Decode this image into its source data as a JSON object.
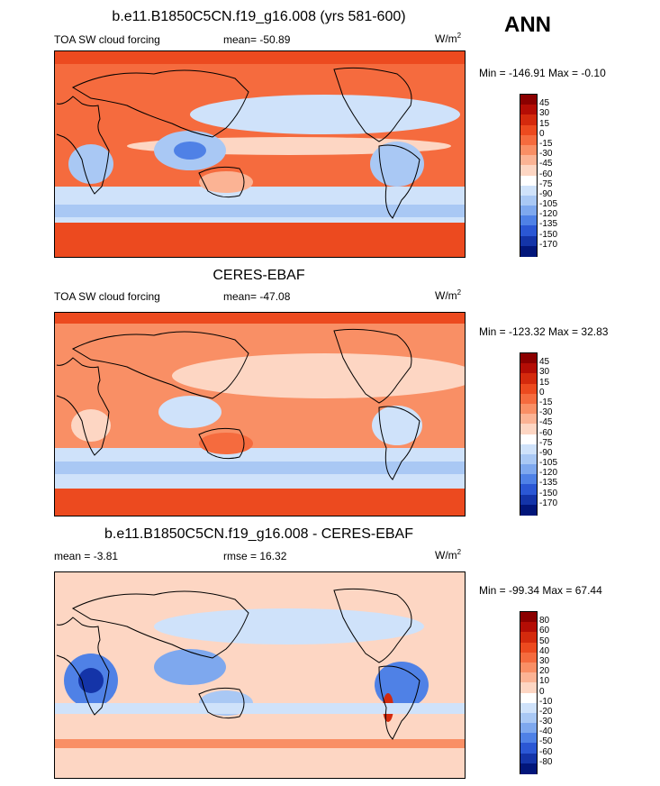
{
  "season": "ANN",
  "units_base": "W/m",
  "units_exp": "2",
  "coast_color": "#000000",
  "chart_data": [
    {
      "type": "heatmap",
      "title": "b.e11.B1850C5CN.f19_g16.008 (yrs 581-600)",
      "left_label": "TOA SW cloud forcing",
      "center_label": "mean= -50.89",
      "minmax_label": "Min = -146.91 Max =  -0.10",
      "colorbar": {
        "levels": [
          "45",
          "30",
          "15",
          "0",
          "-15",
          "-30",
          "-45",
          "-60",
          "-75",
          "-90",
          "-105",
          "-120",
          "-135",
          "-150",
          "-170"
        ],
        "colors": [
          "#8b0000",
          "#b40d05",
          "#d42a0d",
          "#ec4a1f",
          "#f56b3e",
          "#f98f65",
          "#fbb394",
          "#fdd6c3",
          "#ffffff",
          "#cfe2fa",
          "#a9c8f4",
          "#7ea8ee",
          "#4f81e6",
          "#2b57d4",
          "#1434a8",
          "#02167a"
        ]
      }
    },
    {
      "type": "heatmap",
      "title": "CERES-EBAF",
      "left_label": "TOA SW cloud forcing",
      "center_label": "mean= -47.08",
      "minmax_label": "Min = -123.32 Max =  32.83",
      "colorbar": {
        "levels": [
          "45",
          "30",
          "15",
          "0",
          "-15",
          "-30",
          "-45",
          "-60",
          "-75",
          "-90",
          "-105",
          "-120",
          "-135",
          "-150",
          "-170"
        ],
        "colors": [
          "#8b0000",
          "#b40d05",
          "#d42a0d",
          "#ec4a1f",
          "#f56b3e",
          "#f98f65",
          "#fbb394",
          "#fdd6c3",
          "#ffffff",
          "#cfe2fa",
          "#a9c8f4",
          "#7ea8ee",
          "#4f81e6",
          "#2b57d4",
          "#1434a8",
          "#02167a"
        ]
      }
    },
    {
      "type": "heatmap",
      "title": "b.e11.B1850C5CN.f19_g16.008 - CERES-EBAF",
      "left_label": "mean =  -3.81",
      "center_label": "rmse =  16.32",
      "minmax_label": "Min = -99.34 Max =  67.44",
      "colorbar": {
        "levels": [
          "80",
          "60",
          "50",
          "40",
          "30",
          "20",
          "10",
          "0",
          "-10",
          "-20",
          "-30",
          "-40",
          "-50",
          "-60",
          "-80"
        ],
        "colors": [
          "#8b0000",
          "#b40d05",
          "#d42a0d",
          "#ec4a1f",
          "#f56b3e",
          "#f98f65",
          "#fbb394",
          "#fdd6c3",
          "#ffffff",
          "#cfe2fa",
          "#a9c8f4",
          "#7ea8ee",
          "#4f81e6",
          "#2b57d4",
          "#1434a8",
          "#02167a"
        ]
      }
    }
  ]
}
